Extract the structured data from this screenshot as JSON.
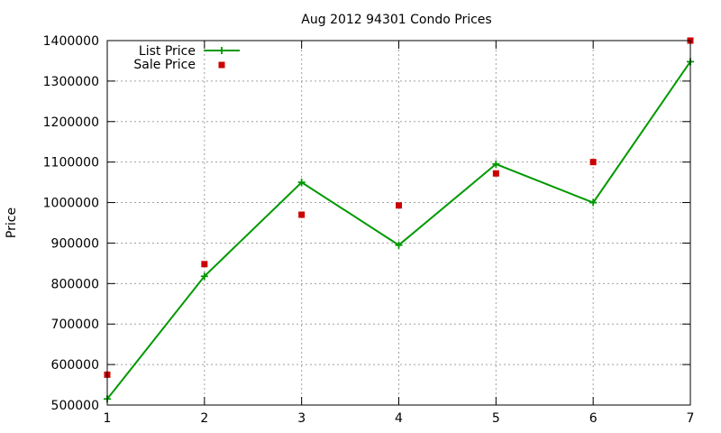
{
  "chart_data": {
    "type": "line",
    "title": "Aug 2012 94301 Condo Prices",
    "xlabel": "",
    "ylabel": "Price",
    "xlim": [
      1,
      7
    ],
    "ylim": [
      500000,
      1400000
    ],
    "x_ticks": [
      1,
      2,
      3,
      4,
      5,
      6,
      7
    ],
    "y_ticks": [
      500000,
      600000,
      700000,
      800000,
      900000,
      1000000,
      1100000,
      1200000,
      1300000,
      1400000
    ],
    "grid": true,
    "legend_position": "top-left",
    "series": [
      {
        "name": "List Price",
        "style": "line-with-plus-markers",
        "color": "#009900",
        "x": [
          1,
          2,
          3,
          4,
          5,
          6,
          7
        ],
        "values": [
          515000,
          818000,
          1050000,
          895000,
          1095000,
          1000000,
          1348000
        ]
      },
      {
        "name": "Sale Price",
        "style": "square-markers",
        "color": "#cc0000",
        "x": [
          1,
          2,
          3,
          4,
          5,
          6,
          7
        ],
        "values": [
          575000,
          848000,
          970000,
          993000,
          1072000,
          1100000,
          1400000
        ]
      }
    ]
  }
}
